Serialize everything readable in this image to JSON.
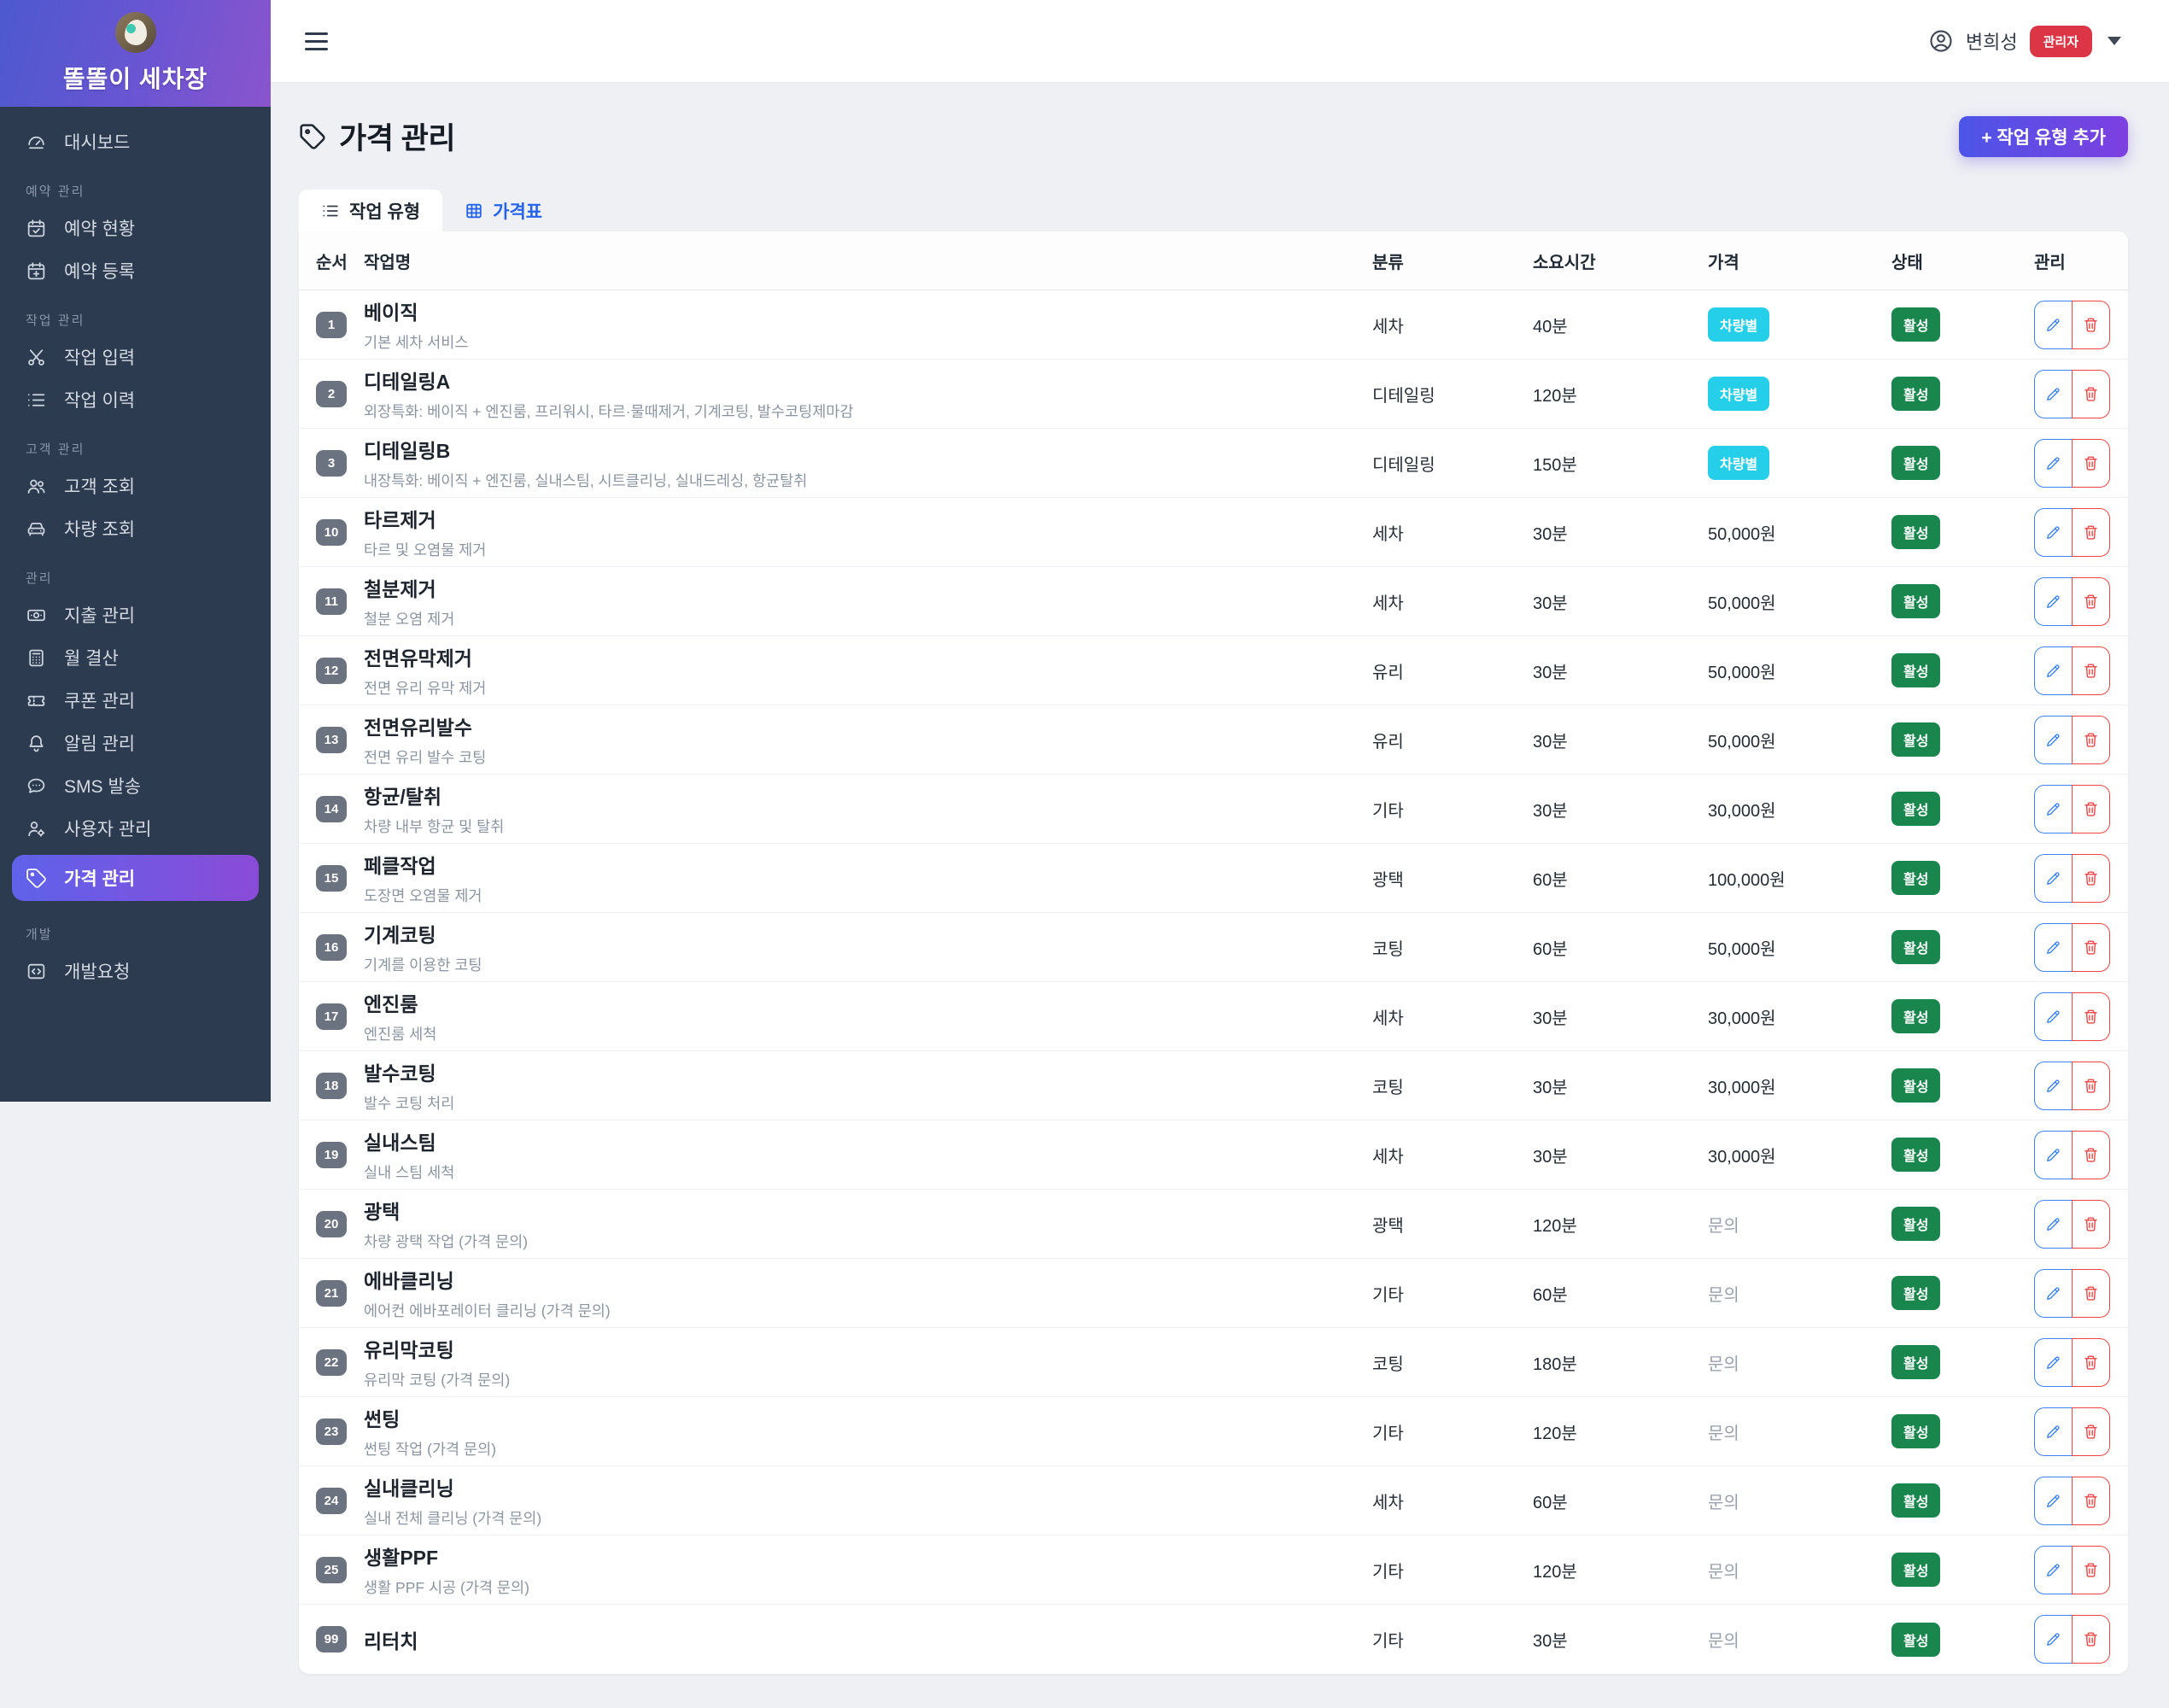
{
  "brand": {
    "name": "똘똘이 세차장",
    "avatar": "dog-photo-avatar"
  },
  "user": {
    "name": "변희성",
    "role": "관리자"
  },
  "sidebar": {
    "sections": [
      {
        "label": "",
        "items": [
          {
            "icon": "dashboard-icon",
            "label": "대시보드"
          }
        ]
      },
      {
        "label": "예약 관리",
        "items": [
          {
            "icon": "calendar-check-icon",
            "label": "예약 현황"
          },
          {
            "icon": "calendar-plus-icon",
            "label": "예약 등록"
          }
        ]
      },
      {
        "label": "작업 관리",
        "items": [
          {
            "icon": "tools-icon",
            "label": "작업 입력"
          },
          {
            "icon": "list-icon",
            "label": "작업 이력"
          }
        ]
      },
      {
        "label": "고객 관리",
        "items": [
          {
            "icon": "users-icon",
            "label": "고객 조회"
          },
          {
            "icon": "car-icon",
            "label": "차량 조회"
          }
        ]
      },
      {
        "label": "관리",
        "items": [
          {
            "icon": "banknote-icon",
            "label": "지출 관리"
          },
          {
            "icon": "calculator-icon",
            "label": "월 결산"
          },
          {
            "icon": "ticket-icon",
            "label": "쿠폰 관리"
          },
          {
            "icon": "bell-icon",
            "label": "알림 관리"
          },
          {
            "icon": "chat-icon",
            "label": "SMS 발송"
          },
          {
            "icon": "user-gear-icon",
            "label": "사용자 관리"
          },
          {
            "icon": "tag-icon",
            "label": "가격 관리",
            "active": true
          }
        ]
      },
      {
        "label": "개발",
        "items": [
          {
            "icon": "code-icon",
            "label": "개발요청"
          }
        ]
      }
    ]
  },
  "page": {
    "title": "가격 관리",
    "add_button_label": "+ 작업 유형 추가",
    "tabs": [
      {
        "label": "작업 유형",
        "icon": "list-icon",
        "active": true
      },
      {
        "label": "가격표",
        "icon": "grid-icon",
        "active": false
      }
    ]
  },
  "table": {
    "columns": [
      "순서",
      "작업명",
      "분류",
      "소요시간",
      "가격",
      "상태",
      "관리"
    ],
    "rows": [
      {
        "order": "1",
        "name": "베이직",
        "desc": "기본 세차 서비스",
        "category": "세차",
        "duration": "40분",
        "price_type": "vehicle",
        "price": "차량별",
        "status": "활성"
      },
      {
        "order": "2",
        "name": "디테일링A",
        "desc": "외장특화: 베이직 + 엔진룸, 프리워시, 타르·물때제거, 기계코팅, 발수코팅제마감",
        "category": "디테일링",
        "duration": "120분",
        "price_type": "vehicle",
        "price": "차량별",
        "status": "활성"
      },
      {
        "order": "3",
        "name": "디테일링B",
        "desc": "내장특화: 베이직 + 엔진룸, 실내스팀, 시트클리닝, 실내드레싱, 항균탈취",
        "category": "디테일링",
        "duration": "150분",
        "price_type": "vehicle",
        "price": "차량별",
        "status": "활성"
      },
      {
        "order": "10",
        "name": "타르제거",
        "desc": "타르 및 오염물 제거",
        "category": "세차",
        "duration": "30분",
        "price_type": "fixed",
        "price": "50,000원",
        "status": "활성"
      },
      {
        "order": "11",
        "name": "철분제거",
        "desc": "철분 오염 제거",
        "category": "세차",
        "duration": "30분",
        "price_type": "fixed",
        "price": "50,000원",
        "status": "활성"
      },
      {
        "order": "12",
        "name": "전면유막제거",
        "desc": "전면 유리 유막 제거",
        "category": "유리",
        "duration": "30분",
        "price_type": "fixed",
        "price": "50,000원",
        "status": "활성"
      },
      {
        "order": "13",
        "name": "전면유리발수",
        "desc": "전면 유리 발수 코팅",
        "category": "유리",
        "duration": "30분",
        "price_type": "fixed",
        "price": "50,000원",
        "status": "활성"
      },
      {
        "order": "14",
        "name": "항균/탈취",
        "desc": "차량 내부 항균 및 탈취",
        "category": "기타",
        "duration": "30분",
        "price_type": "fixed",
        "price": "30,000원",
        "status": "활성"
      },
      {
        "order": "15",
        "name": "페클작업",
        "desc": "도장면 오염물 제거",
        "category": "광택",
        "duration": "60분",
        "price_type": "fixed",
        "price": "100,000원",
        "status": "활성"
      },
      {
        "order": "16",
        "name": "기계코팅",
        "desc": "기계를 이용한 코팅",
        "category": "코팅",
        "duration": "60분",
        "price_type": "fixed",
        "price": "50,000원",
        "status": "활성"
      },
      {
        "order": "17",
        "name": "엔진룸",
        "desc": "엔진룸 세척",
        "category": "세차",
        "duration": "30분",
        "price_type": "fixed",
        "price": "30,000원",
        "status": "활성"
      },
      {
        "order": "18",
        "name": "발수코팅",
        "desc": "발수 코팅 처리",
        "category": "코팅",
        "duration": "30분",
        "price_type": "fixed",
        "price": "30,000원",
        "status": "활성"
      },
      {
        "order": "19",
        "name": "실내스팀",
        "desc": "실내 스팀 세척",
        "category": "세차",
        "duration": "30분",
        "price_type": "fixed",
        "price": "30,000원",
        "status": "활성"
      },
      {
        "order": "20",
        "name": "광택",
        "desc": "차량 광택 작업 (가격 문의)",
        "category": "광택",
        "duration": "120분",
        "price_type": "inquiry",
        "price": "문의",
        "status": "활성"
      },
      {
        "order": "21",
        "name": "에바클리닝",
        "desc": "에어컨 에바포레이터 클리닝 (가격 문의)",
        "category": "기타",
        "duration": "60분",
        "price_type": "inquiry",
        "price": "문의",
        "status": "활성"
      },
      {
        "order": "22",
        "name": "유리막코팅",
        "desc": "유리막 코팅 (가격 문의)",
        "category": "코팅",
        "duration": "180분",
        "price_type": "inquiry",
        "price": "문의",
        "status": "활성"
      },
      {
        "order": "23",
        "name": "썬팅",
        "desc": "썬팅 작업 (가격 문의)",
        "category": "기타",
        "duration": "120분",
        "price_type": "inquiry",
        "price": "문의",
        "status": "활성"
      },
      {
        "order": "24",
        "name": "실내클리닝",
        "desc": "실내 전체 클리닝 (가격 문의)",
        "category": "세차",
        "duration": "60분",
        "price_type": "inquiry",
        "price": "문의",
        "status": "활성"
      },
      {
        "order": "25",
        "name": "생활PPF",
        "desc": "생활 PPF 시공 (가격 문의)",
        "category": "기타",
        "duration": "120분",
        "price_type": "inquiry",
        "price": "문의",
        "status": "활성"
      },
      {
        "order": "99",
        "name": "리터치",
        "desc": "",
        "category": "기타",
        "duration": "30분",
        "price_type": "inquiry",
        "price": "문의",
        "status": "활성"
      }
    ]
  },
  "colors": {
    "sidebar_bg": "#2d3b50",
    "brand_gradient": [
      "#4d59cf",
      "#8a55cd"
    ],
    "active_item_gradient": [
      "#5f62ea",
      "#8a4bd8"
    ],
    "add_button_gradient": [
      "#4d55e8",
      "#7d3fe0"
    ],
    "vehicle_badge": "#26cfe9",
    "active_badge": "#19874d",
    "admin_badge": "#dc3545",
    "edit_blue": "#3b82f6",
    "delete_red": "#ef4444",
    "tab_link_blue": "#2563eb",
    "order_badge": "#6b7280",
    "page_bg": "#eef0f4"
  }
}
